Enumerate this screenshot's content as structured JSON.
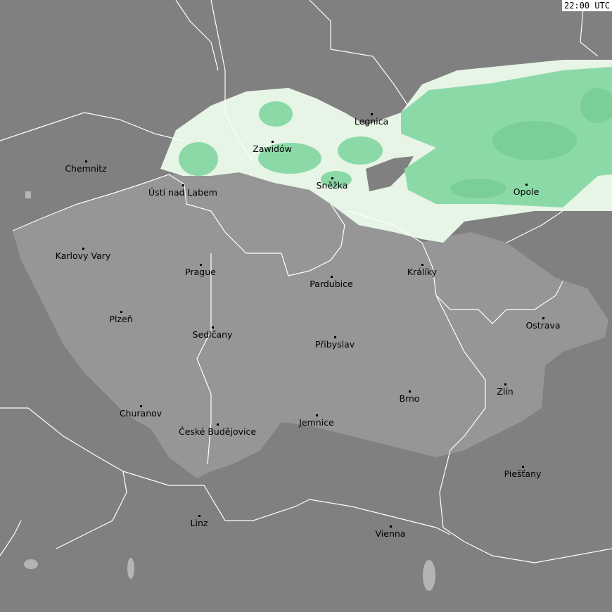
{
  "timestamp": "22:00 UTC",
  "colors": {
    "background": "#808080",
    "country": "#969696",
    "precip_light": "#e6f5e6",
    "precip_medium": "#8cd9a8",
    "precip_strong": "#7acf99",
    "border": "#ffffff"
  },
  "cities": [
    "Legnica",
    "Zawidów",
    "Chemnitz",
    "Ústí nad Labem",
    "Sněžka",
    "Opole",
    "Karlovy Vary",
    "Prague",
    "Pardubice",
    "Králíky",
    "Plzeň",
    "Ostrava",
    "Sedlčany",
    "Přibyslav",
    "Zlín",
    "Brno",
    "Churanov",
    "České Budějovice",
    "Jemnice",
    "Piešťany",
    "Linz",
    "Vienna"
  ]
}
